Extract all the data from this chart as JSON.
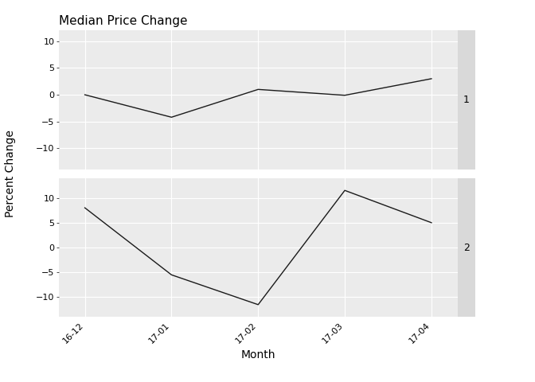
{
  "title": "Median Price Change",
  "xlabel": "Month",
  "ylabel": "Percent Change",
  "x_labels": [
    "16-12",
    "17-01",
    "17-02",
    "17-03",
    "17-04"
  ],
  "panel1": {
    "label": "1",
    "y_values": [
      0.0,
      -4.2,
      1.0,
      -0.1,
      3.0
    ],
    "ylim": [
      -14,
      12
    ],
    "yticks": [
      -10,
      -5,
      0,
      5,
      10
    ]
  },
  "panel2": {
    "label": "2",
    "y_values": [
      8.0,
      -5.5,
      -11.5,
      11.5,
      5.0
    ],
    "ylim": [
      -14,
      14
    ],
    "yticks": [
      -10,
      -5,
      0,
      5,
      10
    ]
  },
  "panel_bg": "#EBEBEB",
  "strip_bg": "#D9D9D9",
  "fig_bg": "#FFFFFF",
  "line_color": "#1a1a1a",
  "grid_color": "#FFFFFF",
  "title_fontsize": 11,
  "axis_label_fontsize": 10,
  "tick_fontsize": 8,
  "strip_fontsize": 9
}
